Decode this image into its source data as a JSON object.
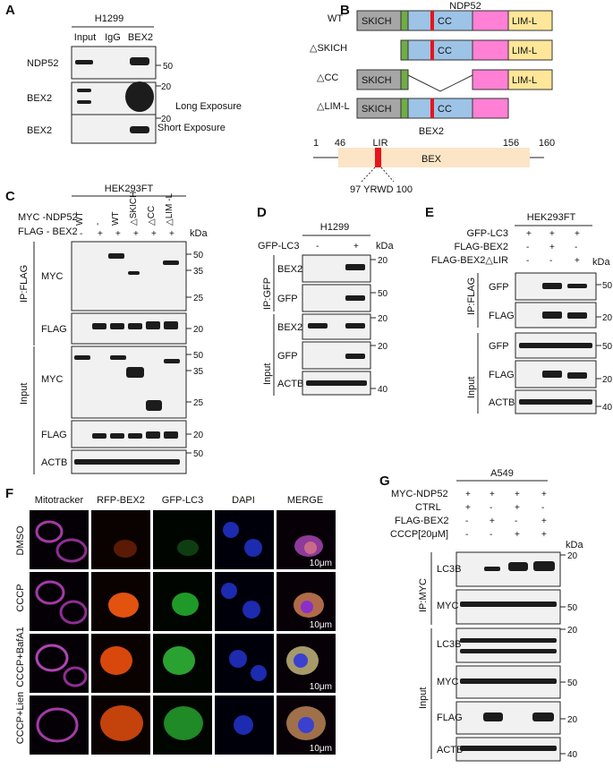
{
  "panels": {
    "A": {
      "label": "A",
      "cell_line": "H1299",
      "lanes": [
        "Input",
        "IgG",
        "BEX2"
      ],
      "rows": [
        {
          "name": "NDP52",
          "marker": "50",
          "note": ""
        },
        {
          "name": "BEX2",
          "marker": "20",
          "note": "Long Exposure"
        },
        {
          "name": "BEX2",
          "marker": "20",
          "note": "Short Exposure"
        }
      ]
    },
    "B": {
      "label": "B",
      "title": "NDP52",
      "constructs": [
        {
          "name": "WT",
          "domains": [
            "SKICH",
            "CC",
            "LIM-L"
          ]
        },
        {
          "name": "△SKICH",
          "domains": [
            "SKICH",
            "CC",
            "LIM-L"
          ]
        },
        {
          "name": "△CC",
          "domains": [
            "SKICH",
            "LIM-L"
          ]
        },
        {
          "name": "△LIM-L",
          "domains": [
            "SKICH",
            "CC"
          ]
        }
      ],
      "bex2": {
        "title": "BEX2",
        "motif": "LIR",
        "domain": "BEX",
        "positions": [
          "1",
          "46",
          "156",
          "160"
        ],
        "motif_range": "97 YRWD 100"
      },
      "colors": {
        "skich": "#a6a6a6",
        "cc": "#9dc3e6",
        "lim": "#ffe699",
        "linker": "#ff80d5",
        "lir": "#e8141b",
        "green": "#70ad47",
        "bex": "#fbe5c6"
      }
    },
    "C": {
      "label": "C",
      "cell_line": "HEK293FT",
      "rows_header": [
        "MYC -NDP52",
        "FLAG - BEX2"
      ],
      "lane_names": [
        "WT",
        "-",
        "WT",
        "△SKICH",
        "△CC",
        "△LIM -L"
      ],
      "flag_signs": [
        "-",
        "+",
        "+",
        "+",
        "+",
        "+"
      ],
      "kda": "kDa",
      "groups": [
        "IP:FLAG",
        "Input"
      ],
      "blots": [
        {
          "name": "MYC",
          "markers": [
            "50",
            "35",
            "25"
          ]
        },
        {
          "name": "FLAG",
          "markers": [
            "20"
          ]
        },
        {
          "name": "MYC",
          "markers": [
            "50",
            "35",
            "25"
          ]
        },
        {
          "name": "FLAG",
          "markers": [
            "20"
          ]
        },
        {
          "name": "ACTB",
          "markers": [
            "50"
          ]
        }
      ]
    },
    "D": {
      "label": "D",
      "cell_line": "H1299",
      "row_header": "GFP-LC3",
      "signs": [
        "-",
        "+"
      ],
      "kda": "kDa",
      "groups": [
        "IP:GFP",
        "Input"
      ],
      "blots": [
        {
          "name": "BEX2",
          "marker": "20"
        },
        {
          "name": "GFP",
          "marker": "50"
        },
        {
          "name": "BEX2",
          "marker": "20"
        },
        {
          "name": "GFP",
          "marker": "20"
        },
        {
          "name": "ACTB",
          "marker": "40"
        }
      ]
    },
    "E": {
      "label": "E",
      "cell_line": "HEK293FT",
      "rows": [
        {
          "name": "GFP-LC3",
          "signs": [
            "+",
            "+",
            "+"
          ]
        },
        {
          "name": "FLAG-BEX2",
          "signs": [
            "-",
            "+",
            "-"
          ]
        },
        {
          "name": "FLAG-BEX2△LIR",
          "signs": [
            "-",
            "-",
            "+"
          ]
        }
      ],
      "kda": "kDa",
      "groups": [
        "IP:FLAG",
        "Input"
      ],
      "blots": [
        {
          "name": "GFP",
          "marker": "50"
        },
        {
          "name": "FLAG",
          "marker": "20"
        },
        {
          "name": "GFP",
          "marker": "50"
        },
        {
          "name": "FLAG",
          "marker": "20"
        },
        {
          "name": "ACTB",
          "marker": "40"
        }
      ]
    },
    "F": {
      "label": "F",
      "columns": [
        "Mitotracker",
        "RFP-BEX2",
        "GFP-LC3",
        "DAPI",
        "MERGE"
      ],
      "rows": [
        "DMSO",
        "CCCP",
        "CCCP+BafA1",
        "CCCP+Lien"
      ],
      "scale_bar": "10μm"
    },
    "G": {
      "label": "G",
      "cell_line": "A549",
      "rows": [
        {
          "name": "MYC-NDP52",
          "signs": [
            "+",
            "+",
            "+",
            "+"
          ]
        },
        {
          "name": "CTRL",
          "signs": [
            "+",
            "-",
            "+",
            "-"
          ]
        },
        {
          "name": "FLAG-BEX2",
          "signs": [
            "-",
            "+",
            "-",
            "+"
          ]
        },
        {
          "name": "CCCP[20μM]",
          "signs": [
            "-",
            "-",
            "+",
            "+"
          ]
        }
      ],
      "kda": "kDa",
      "groups": [
        "IP:MYC",
        "Input"
      ],
      "blots": [
        {
          "name": "LC3B",
          "marker": "20"
        },
        {
          "name": "MYC",
          "marker": "50"
        },
        {
          "name": "LC3B",
          "marker": "20"
        },
        {
          "name": "MYC",
          "marker": "50"
        },
        {
          "name": "FLAG",
          "marker": "20"
        },
        {
          "name": "ACTB",
          "marker": "40"
        }
      ]
    }
  }
}
